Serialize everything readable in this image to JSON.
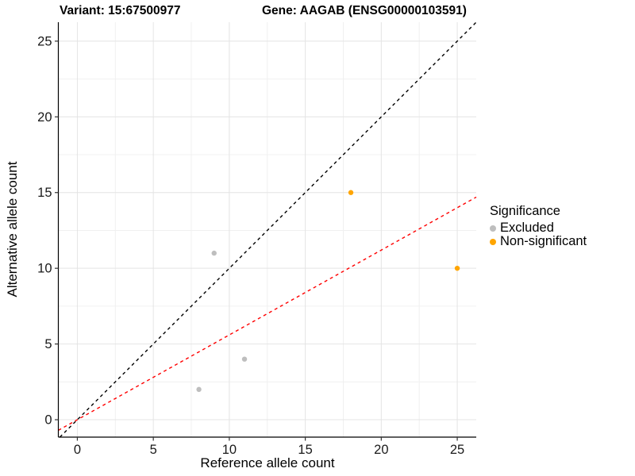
{
  "chart_data": {
    "type": "scatter",
    "title_left": "Variant: 15:67500977",
    "title_right": "Gene: AAGAB (ENSG00000103591)",
    "xlabel": "Reference allele count",
    "ylabel": "Alternative allele count",
    "xlim": [
      -1.25,
      26.25
    ],
    "ylim": [
      -1.15,
      26.25
    ],
    "x_ticks": [
      0,
      5,
      10,
      15,
      20,
      25
    ],
    "y_ticks": [
      0,
      5,
      10,
      15,
      20,
      25
    ],
    "x_minor_ticks": [
      2.5,
      7.5,
      12.5,
      17.5,
      22.5
    ],
    "y_minor_ticks": [
      2.5,
      7.5,
      12.5,
      17.5,
      22.5
    ],
    "grid": true,
    "background": "#ffffff",
    "series": [
      {
        "name": "Excluded",
        "color": "#BEBEBE",
        "points": [
          [
            9,
            11
          ],
          [
            11,
            4
          ],
          [
            8,
            2
          ]
        ]
      },
      {
        "name": "Non-significant",
        "color": "#FFA500",
        "points": [
          [
            18,
            15
          ],
          [
            25,
            10
          ]
        ]
      }
    ],
    "lines": [
      {
        "name": "identity-line",
        "color": "#000000",
        "dashed": true,
        "slope": 1.0,
        "intercept": 0
      },
      {
        "name": "fit-line",
        "color": "#FF0000",
        "dashed": true,
        "slope": 0.56,
        "intercept": 0
      }
    ],
    "legend": {
      "title": "Significance",
      "position": "right",
      "entries": [
        {
          "label": "Excluded",
          "color": "#BEBEBE"
        },
        {
          "label": "Non-significant",
          "color": "#FFA500"
        }
      ]
    }
  }
}
